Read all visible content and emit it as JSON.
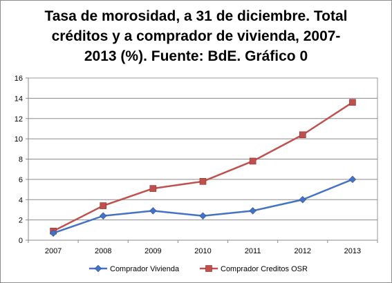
{
  "chart_data": {
    "type": "line",
    "title_lines": [
      "Tasa de morosidad, a 31 de diciembre. Total",
      "créditos  y a comprador de vivienda, 2007-",
      "2013 (%). Fuente: BdE. Gráfico  0"
    ],
    "categories": [
      "2007",
      "2008",
      "2009",
      "2010",
      "2011",
      "2012",
      "2013"
    ],
    "series": [
      {
        "name": "Comprador Vivienda",
        "values": [
          0.7,
          2.4,
          2.9,
          2.4,
          2.9,
          4.0,
          6.0
        ],
        "color": "#4472c4",
        "marker": "diamond"
      },
      {
        "name": "Comprador Creditos OSR",
        "values": [
          0.9,
          3.4,
          5.1,
          5.8,
          7.8,
          10.4,
          13.6
        ],
        "color": "#c0504d",
        "marker": "square"
      }
    ],
    "yticks": [
      "0",
      "2",
      "4",
      "6",
      "8",
      "10",
      "12",
      "14",
      "16"
    ],
    "ylim": [
      0,
      16
    ],
    "grid": true,
    "legend_position": "bottom"
  }
}
